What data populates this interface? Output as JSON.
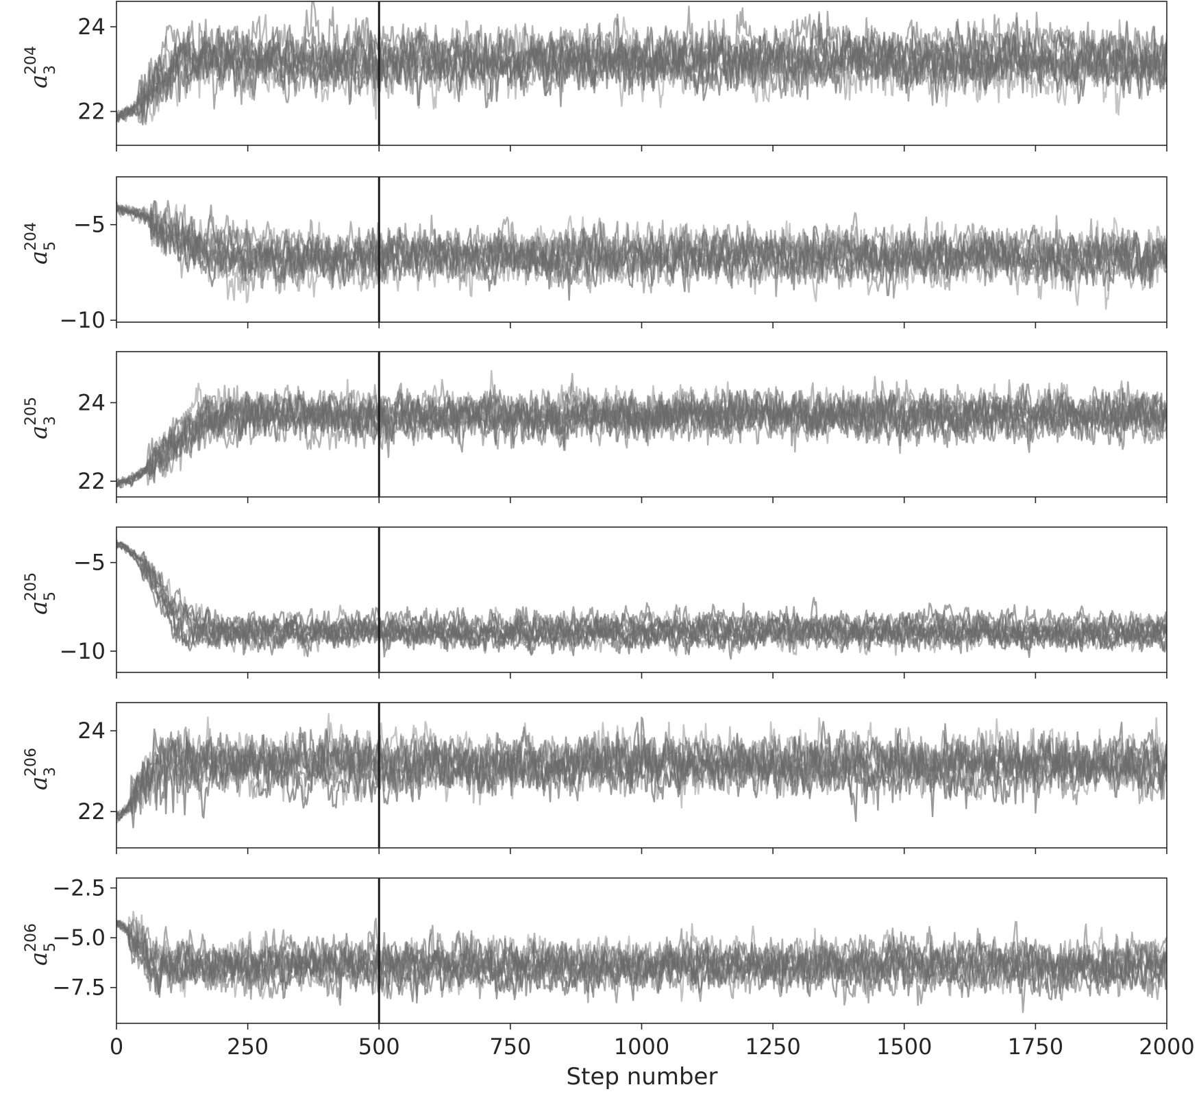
{
  "chart_data": {
    "type": "line",
    "xlabel": "Step number",
    "xlim": [
      0,
      2000
    ],
    "x_ticks": [
      "0",
      "250",
      "500",
      "750",
      "1000",
      "1250",
      "1500",
      "1750",
      "2000"
    ],
    "x_tick_values": [
      0,
      250,
      500,
      750,
      1000,
      1250,
      1500,
      1750,
      2000
    ],
    "marker_line_x": 500,
    "grid": false,
    "walkers_per_panel": 10,
    "series_color": "#6a6a6a",
    "marker_color": "#1a1a1a",
    "panels": [
      {
        "ylabel": {
          "base": "a",
          "sub": "3",
          "sup": "204"
        },
        "ylim": [
          21.2,
          24.6
        ],
        "yticks": [
          22,
          24
        ],
        "ytick_labels": [
          "22",
          "24"
        ],
        "start": 21.9,
        "settle_step": 140,
        "stationary_mean": 23.15,
        "spread": 0.45
      },
      {
        "ylabel": {
          "base": "a",
          "sub": "5",
          "sup": "204"
        },
        "ylim": [
          -10.1,
          -2.5
        ],
        "yticks": [
          -10,
          -5
        ],
        "ytick_labels": [
          "−10",
          "−5"
        ],
        "start": -4.2,
        "settle_step": 220,
        "stationary_mean": -6.8,
        "spread": 0.9
      },
      {
        "ylabel": {
          "base": "a",
          "sub": "3",
          "sup": "205"
        },
        "ylim": [
          21.6,
          25.3
        ],
        "yticks": [
          22,
          24
        ],
        "ytick_labels": [
          "22",
          "24"
        ],
        "start": 21.95,
        "settle_step": 200,
        "stationary_mean": 23.7,
        "spread": 0.4
      },
      {
        "ylabel": {
          "base": "a",
          "sub": "5",
          "sup": "205"
        },
        "ylim": [
          -11.2,
          -3.0
        ],
        "yticks": [
          -10,
          -5
        ],
        "ytick_labels": [
          "−10",
          "−5"
        ],
        "start": -4.0,
        "settle_step": 160,
        "stationary_mean": -8.9,
        "spread": 0.6
      },
      {
        "ylabel": {
          "base": "a",
          "sub": "3",
          "sup": "206"
        },
        "ylim": [
          21.1,
          24.7
        ],
        "yticks": [
          22,
          24
        ],
        "ytick_labels": [
          "22",
          "24"
        ],
        "start": 21.9,
        "settle_step": 90,
        "stationary_mean": 23.2,
        "spread": 0.45
      },
      {
        "ylabel": {
          "base": "a",
          "sub": "5",
          "sup": "206"
        },
        "ylim": [
          -9.3,
          -2.0
        ],
        "yticks": [
          -7.5,
          -5.0,
          -2.5
        ],
        "ytick_labels": [
          "−7.5",
          "−5.0",
          "−2.5"
        ],
        "start": -4.3,
        "settle_step": 80,
        "stationary_mean": -6.3,
        "spread": 0.8
      }
    ]
  }
}
